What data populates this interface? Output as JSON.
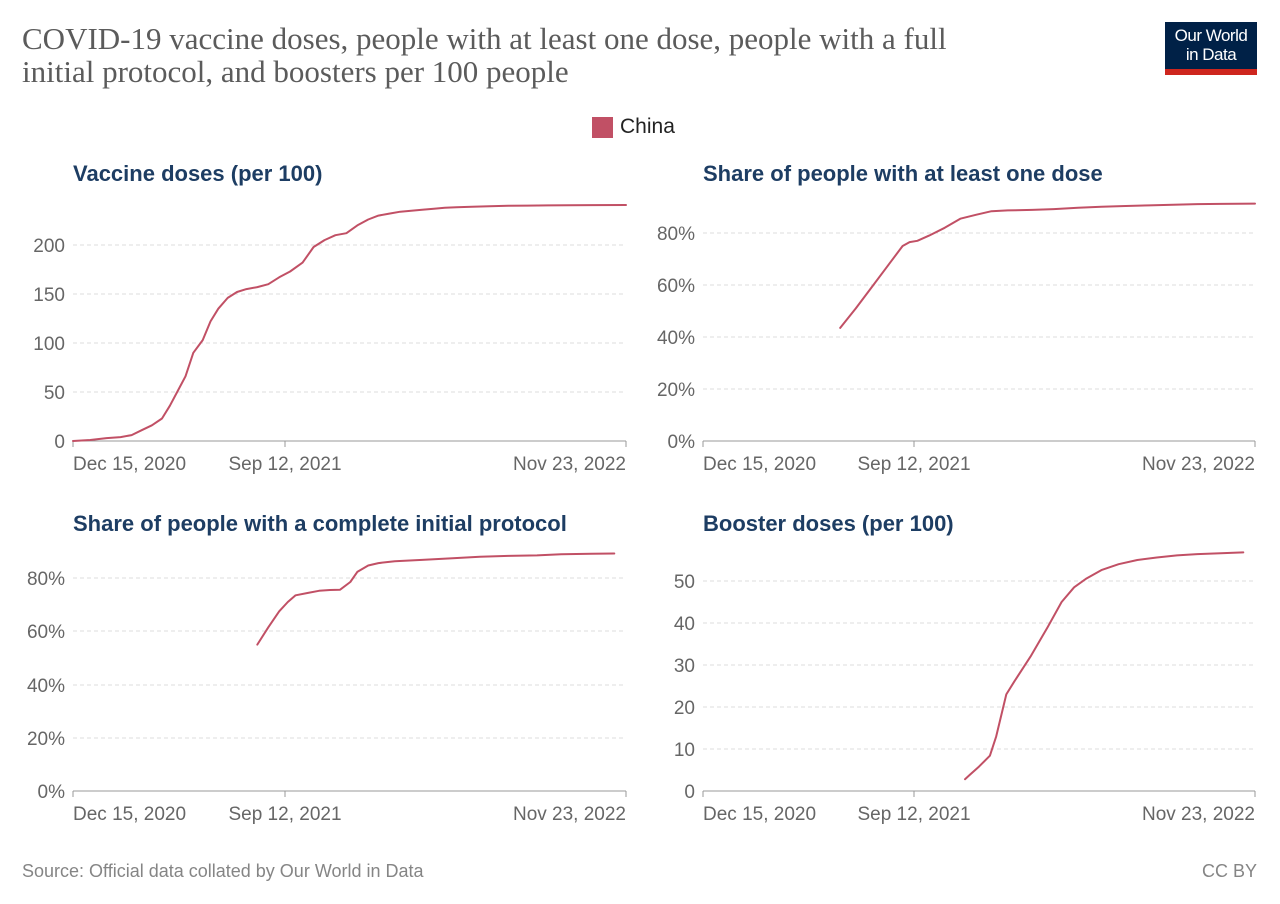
{
  "title_line1": "COVID-19 vaccine doses, people with at least one dose, people with a full",
  "title_line2": "initial protocol, and boosters per 100 people",
  "logo": {
    "line1": "Our World",
    "line2": "in Data"
  },
  "legend": {
    "label": "China",
    "color": "#c15065"
  },
  "source": "Source: Official data collated by Our World in Data",
  "license": "CC BY",
  "chart_data": [
    {
      "type": "line",
      "title": "Vaccine doses (per 100)",
      "x_ticks": [
        "Dec 15, 2020",
        "Sep 12, 2021",
        "Nov 23, 2022"
      ],
      "y_ticks": [
        "0",
        "50",
        "100",
        "150",
        "200"
      ],
      "ylim": [
        0,
        240
      ],
      "grid": true,
      "series": [
        {
          "name": "China",
          "x": [
            "2020-12-15",
            "2021-01-06",
            "2021-01-27",
            "2021-02-14",
            "2021-02-28",
            "2021-03-13",
            "2021-03-26",
            "2021-04-08",
            "2021-04-18",
            "2021-04-28",
            "2021-05-08",
            "2021-05-18",
            "2021-05-30",
            "2021-06-09",
            "2021-06-19",
            "2021-07-01",
            "2021-07-13",
            "2021-07-25",
            "2021-08-08",
            "2021-08-22",
            "2021-09-05",
            "2021-09-19",
            "2021-10-05",
            "2021-10-19",
            "2021-11-02",
            "2021-11-16",
            "2021-11-30",
            "2021-12-14",
            "2021-12-28",
            "2022-01-10",
            "2022-01-24",
            "2022-02-07",
            "2022-02-21",
            "2022-03-07",
            "2022-03-22",
            "2022-04-05",
            "2022-04-20",
            "2022-05-10",
            "2022-06-01",
            "2022-06-25",
            "2022-07-20",
            "2022-08-15",
            "2022-09-10",
            "2022-10-10",
            "2022-11-23"
          ],
          "values": [
            0,
            1,
            3,
            4,
            6,
            11,
            16,
            23,
            36,
            51,
            66,
            90,
            103,
            122,
            135,
            146,
            152,
            155,
            157,
            160,
            167,
            173,
            182,
            198,
            205,
            210,
            212,
            220,
            226,
            230,
            232,
            234,
            235,
            236,
            237,
            238,
            238.5,
            239,
            239.5,
            240,
            240.2,
            240.4,
            240.5,
            240.7,
            240.8
          ]
        }
      ]
    },
    {
      "type": "line",
      "title": "Share of people with at least one dose",
      "x_ticks": [
        "Dec 15, 2020",
        "Sep 12, 2021",
        "Nov 23, 2022"
      ],
      "y_ticks": [
        "0%",
        "20%",
        "40%",
        "60%",
        "80%"
      ],
      "ylim": [
        0,
        90
      ],
      "grid": true,
      "series": [
        {
          "name": "China",
          "x": [
            "2021-06-09",
            "2021-06-29",
            "2021-07-19",
            "2021-08-08",
            "2021-08-28",
            "2021-09-06",
            "2021-09-16",
            "2021-10-01",
            "2021-10-21",
            "2021-11-10",
            "2021-11-30",
            "2021-12-20",
            "2022-01-10",
            "2022-02-10",
            "2022-03-10",
            "2022-04-10",
            "2022-05-10",
            "2022-06-10",
            "2022-07-10",
            "2022-08-10",
            "2022-09-10",
            "2022-10-10",
            "2022-11-23"
          ],
          "values": [
            43.5,
            51,
            59,
            67,
            75,
            76.5,
            77,
            79,
            82,
            85.5,
            87,
            88.4,
            88.7,
            88.9,
            89.2,
            89.7,
            90.1,
            90.4,
            90.6,
            90.9,
            91.1,
            91.2,
            91.3
          ]
        }
      ]
    },
    {
      "type": "line",
      "title": "Share of people with a complete initial protocol",
      "x_ticks": [
        "Dec 15, 2020",
        "Sep 12, 2021",
        "Nov 23, 2022"
      ],
      "y_ticks": [
        "0%",
        "20%",
        "40%",
        "60%",
        "80%"
      ],
      "ylim": [
        0,
        90
      ],
      "grid": true,
      "series": [
        {
          "name": "China",
          "x": [
            "2021-08-08",
            "2021-08-22",
            "2021-09-05",
            "2021-09-16",
            "2021-09-26",
            "2021-10-12",
            "2021-10-26",
            "2021-11-09",
            "2021-11-22",
            "2021-12-05",
            "2021-12-14",
            "2021-12-28",
            "2022-01-10",
            "2022-01-31",
            "2022-03-07",
            "2022-04-15",
            "2022-05-20",
            "2022-06-25",
            "2022-08-01",
            "2022-09-01",
            "2022-10-10",
            "2022-11-08"
          ],
          "values": [
            55,
            61.5,
            67.5,
            71,
            73.5,
            74.4,
            75.2,
            75.5,
            75.6,
            78.5,
            82.3,
            84.7,
            85.6,
            86.3,
            86.8,
            87.4,
            88,
            88.3,
            88.5,
            88.9,
            89.1,
            89.2
          ]
        }
      ]
    },
    {
      "type": "line",
      "title": "Booster doses (per 100)",
      "x_ticks": [
        "Dec 15, 2020",
        "Sep 12, 2021",
        "Nov 23, 2022"
      ],
      "y_ticks": [
        "0",
        "10",
        "20",
        "30",
        "40",
        "50"
      ],
      "ylim": [
        0,
        58
      ],
      "grid": true,
      "series": [
        {
          "name": "China",
          "x": [
            "2021-11-16",
            "2021-11-22",
            "2021-12-04",
            "2021-12-18",
            "2021-12-26",
            "2022-01-08",
            "2022-01-18",
            "2022-02-08",
            "2022-03-02",
            "2022-03-20",
            "2022-04-05",
            "2022-04-20",
            "2022-05-10",
            "2022-06-01",
            "2022-06-25",
            "2022-07-20",
            "2022-08-15",
            "2022-09-10",
            "2022-10-10",
            "2022-11-08"
          ],
          "values": [
            2.8,
            3.8,
            5.8,
            8.4,
            13,
            23,
            26,
            32,
            39,
            45,
            48.5,
            50.5,
            52.6,
            54,
            55,
            55.6,
            56.1,
            56.4,
            56.6,
            56.8
          ]
        }
      ]
    }
  ]
}
